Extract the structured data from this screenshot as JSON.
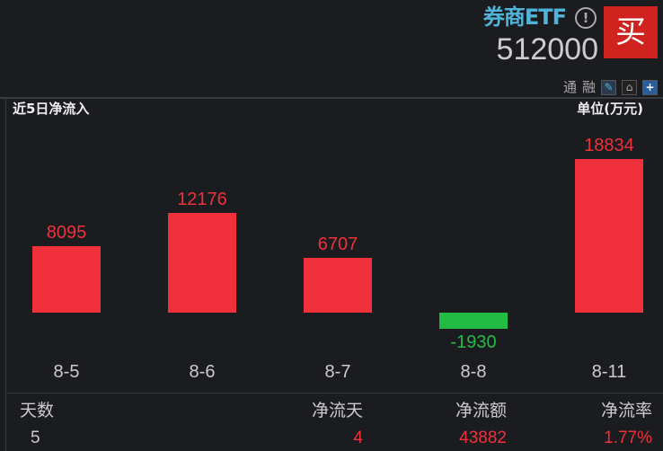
{
  "header": {
    "title": "券商ETF",
    "info_icon": "!",
    "code": "512000",
    "buy_label": "买",
    "tool_labels": [
      "通",
      "融"
    ],
    "tool_icons": [
      "pencil-icon",
      "bell-icon",
      "plus-icon"
    ]
  },
  "panel": {
    "title": "近5日净流入",
    "unit": "单位(万元)"
  },
  "colors": {
    "positive": "#f0303a",
    "negative": "#22bb44",
    "accent": "#4fb4d8"
  },
  "chart_data": {
    "type": "bar",
    "categories": [
      "8-5",
      "8-6",
      "8-7",
      "8-8",
      "8-11"
    ],
    "values": [
      8095,
      12176,
      6707,
      -1930,
      18834
    ],
    "value_labels": [
      "8095",
      "12176",
      "6707",
      "-1930",
      "18834"
    ]
  },
  "stats": {
    "headers": [
      "天数",
      "净流天",
      "净流额",
      "净流率"
    ],
    "values": [
      "5",
      "4",
      "43882",
      "1.77%"
    ]
  }
}
